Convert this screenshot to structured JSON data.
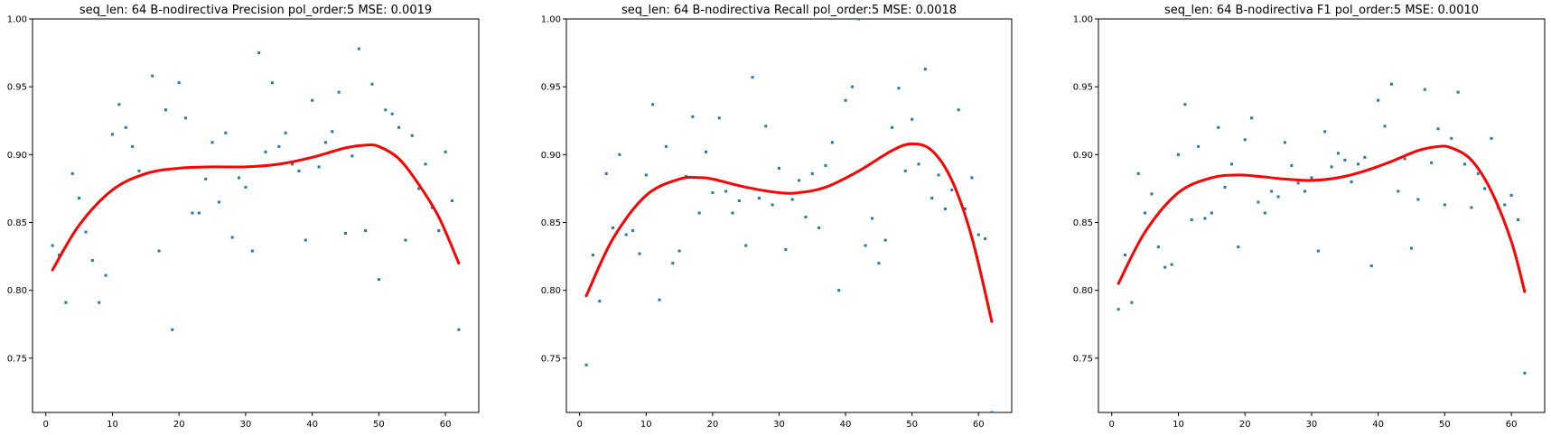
{
  "chart_data": [
    {
      "type": "scatter",
      "title": "seq_len: 64    B-nodirectiva   Precision   pol_order:5   MSE: 0.0019",
      "xlabel": "",
      "ylabel": "",
      "xlim": [
        -2,
        65
      ],
      "ylim": [
        0.71,
        1.0
      ],
      "xticks": [
        0,
        10,
        20,
        30,
        40,
        50,
        60
      ],
      "yticks": [
        0.75,
        0.8,
        0.85,
        0.9,
        0.95,
        1.0
      ],
      "grid": false,
      "points_color": "#1f77b4",
      "fit_color": "#ff0000",
      "x": [
        1,
        2,
        3,
        4,
        5,
        6,
        7,
        8,
        9,
        10,
        11,
        12,
        13,
        14,
        15,
        16,
        17,
        18,
        19,
        20,
        21,
        22,
        23,
        24,
        25,
        26,
        27,
        28,
        29,
        30,
        31,
        32,
        33,
        34,
        35,
        36,
        37,
        38,
        39,
        40,
        41,
        42,
        43,
        44,
        45,
        46,
        47,
        48,
        49,
        50,
        51,
        52,
        53,
        54,
        55,
        56,
        57,
        58,
        59,
        60,
        61,
        62
      ],
      "y": [
        0.833,
        0.826,
        0.791,
        0.886,
        0.868,
        0.843,
        0.822,
        0.791,
        0.811,
        0.915,
        0.937,
        0.92,
        0.906,
        0.888,
        0.886,
        0.958,
        0.829,
        0.933,
        0.771,
        0.953,
        0.927,
        0.857,
        0.857,
        0.882,
        0.909,
        0.865,
        0.916,
        0.839,
        0.883,
        0.876,
        0.829,
        0.975,
        0.902,
        0.953,
        0.906,
        0.916,
        0.893,
        0.888,
        0.837,
        0.94,
        0.891,
        0.909,
        0.917,
        0.946,
        0.842,
        0.899,
        0.978,
        0.844,
        0.952,
        0.808,
        0.933,
        0.93,
        0.92,
        0.837,
        0.914,
        0.875,
        0.893,
        0.861,
        0.844,
        0.902,
        0.866,
        0.771
      ],
      "fit": {
        "x": [
          1,
          5,
          10,
          15,
          20,
          25,
          30,
          35,
          40,
          45,
          48,
          50,
          53,
          56,
          59,
          62
        ],
        "y": [
          0.815,
          0.848,
          0.874,
          0.886,
          0.89,
          0.891,
          0.891,
          0.893,
          0.898,
          0.905,
          0.907,
          0.906,
          0.897,
          0.878,
          0.854,
          0.82
        ]
      }
    },
    {
      "type": "scatter",
      "title": "seq_len: 64    B-nodirectiva   Recall   pol_order:5   MSE: 0.0018",
      "xlabel": "",
      "ylabel": "",
      "xlim": [
        -2,
        65
      ],
      "ylim": [
        0.71,
        1.0
      ],
      "xticks": [
        0,
        10,
        20,
        30,
        40,
        50,
        60
      ],
      "yticks": [
        0.75,
        0.8,
        0.85,
        0.9,
        0.95,
        1.0
      ],
      "grid": false,
      "points_color": "#1f77b4",
      "fit_color": "#ff0000",
      "x": [
        1,
        2,
        3,
        4,
        5,
        6,
        7,
        8,
        9,
        10,
        11,
        12,
        13,
        14,
        15,
        16,
        17,
        18,
        19,
        20,
        21,
        22,
        23,
        24,
        25,
        26,
        27,
        28,
        29,
        30,
        31,
        32,
        33,
        34,
        35,
        36,
        37,
        38,
        39,
        40,
        41,
        42,
        43,
        44,
        45,
        46,
        47,
        48,
        49,
        50,
        51,
        52,
        53,
        54,
        55,
        56,
        57,
        58,
        59,
        60,
        61,
        62
      ],
      "y": [
        0.745,
        0.826,
        0.792,
        0.886,
        0.846,
        0.9,
        0.841,
        0.844,
        0.827,
        0.885,
        0.937,
        0.793,
        0.906,
        0.82,
        0.829,
        0.884,
        0.928,
        0.857,
        0.902,
        0.872,
        0.927,
        0.873,
        0.857,
        0.866,
        0.833,
        0.957,
        0.868,
        0.921,
        0.863,
        0.89,
        0.83,
        0.867,
        0.881,
        0.854,
        0.886,
        0.846,
        0.892,
        0.909,
        0.8,
        0.94,
        0.95,
        1.0,
        0.833,
        0.853,
        0.82,
        0.837,
        0.92,
        0.949,
        0.888,
        0.926,
        0.893,
        0.963,
        0.868,
        0.885,
        0.86,
        0.874,
        0.933,
        0.86,
        0.883,
        0.841,
        0.838,
        0.71
      ],
      "fit": {
        "x": [
          1,
          5,
          10,
          15,
          18,
          20,
          25,
          30,
          33,
          37,
          42,
          47,
          50,
          53,
          56,
          59,
          62
        ],
        "y": [
          0.796,
          0.838,
          0.87,
          0.882,
          0.883,
          0.882,
          0.876,
          0.872,
          0.872,
          0.876,
          0.888,
          0.903,
          0.908,
          0.903,
          0.881,
          0.839,
          0.777
        ]
      }
    },
    {
      "type": "scatter",
      "title": "seq_len: 64    B-nodirectiva   F1   pol_order:5   MSE: 0.0010",
      "xlabel": "",
      "ylabel": "",
      "xlim": [
        -2,
        65
      ],
      "ylim": [
        0.71,
        1.0
      ],
      "xticks": [
        0,
        10,
        20,
        30,
        40,
        50,
        60
      ],
      "yticks": [
        0.75,
        0.8,
        0.85,
        0.9,
        0.95,
        1.0
      ],
      "grid": false,
      "points_color": "#1f77b4",
      "fit_color": "#ff0000",
      "x": [
        1,
        2,
        3,
        4,
        5,
        6,
        7,
        8,
        9,
        10,
        11,
        12,
        13,
        14,
        15,
        16,
        17,
        18,
        19,
        20,
        21,
        22,
        23,
        24,
        25,
        26,
        27,
        28,
        29,
        30,
        31,
        32,
        33,
        34,
        35,
        36,
        37,
        38,
        39,
        40,
        41,
        42,
        43,
        44,
        45,
        46,
        47,
        48,
        49,
        50,
        51,
        52,
        53,
        54,
        55,
        56,
        57,
        58,
        59,
        60,
        61,
        62
      ],
      "y": [
        0.786,
        0.826,
        0.791,
        0.886,
        0.857,
        0.871,
        0.832,
        0.817,
        0.819,
        0.9,
        0.937,
        0.852,
        0.906,
        0.853,
        0.857,
        0.92,
        0.876,
        0.893,
        0.832,
        0.911,
        0.927,
        0.865,
        0.857,
        0.873,
        0.869,
        0.909,
        0.892,
        0.879,
        0.873,
        0.883,
        0.829,
        0.917,
        0.891,
        0.901,
        0.896,
        0.88,
        0.893,
        0.898,
        0.818,
        0.94,
        0.921,
        0.952,
        0.873,
        0.897,
        0.831,
        0.867,
        0.948,
        0.894,
        0.919,
        0.863,
        0.912,
        0.946,
        0.893,
        0.861,
        0.886,
        0.875,
        0.912,
        0.861,
        0.863,
        0.87,
        0.852,
        0.739
      ],
      "fit": {
        "x": [
          1,
          5,
          10,
          15,
          19,
          22,
          26,
          30,
          34,
          38,
          42,
          46,
          49,
          51,
          54,
          57,
          60,
          62
        ],
        "y": [
          0.805,
          0.843,
          0.872,
          0.883,
          0.885,
          0.884,
          0.882,
          0.881,
          0.883,
          0.888,
          0.895,
          0.903,
          0.906,
          0.905,
          0.896,
          0.873,
          0.836,
          0.799
        ]
      }
    }
  ]
}
